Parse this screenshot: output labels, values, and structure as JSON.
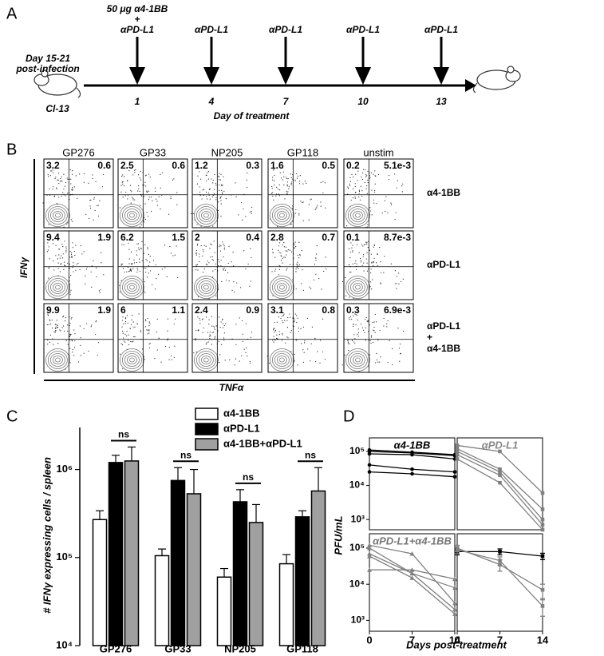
{
  "panel_labels": [
    "A",
    "B",
    "C",
    "D"
  ],
  "timeline": {
    "start_label": [
      "Day 15-21",
      "post-infection"
    ],
    "strain": "Cl-13",
    "treatments": [
      {
        "label": [
          "50 μg α4-1BB",
          "+",
          "αPD-L1"
        ],
        "day": 1
      },
      {
        "label": [
          "αPD-L1"
        ],
        "day": 4
      },
      {
        "label": [
          "αPD-L1"
        ],
        "day": 7
      },
      {
        "label": [
          "αPD-L1"
        ],
        "day": 10
      },
      {
        "label": [
          "αPD-L1"
        ],
        "day": 13
      }
    ],
    "axis_label": "Day of treatment"
  },
  "flow": {
    "columns": [
      "GP276",
      "GP33",
      "NP205",
      "GP118",
      "unstim"
    ],
    "rows": [
      {
        "label": [
          "α4-1BB"
        ],
        "quadrants": [
          [
            "3.2",
            "0.6"
          ],
          [
            "2.5",
            "0.6"
          ],
          [
            "1.2",
            "0.3"
          ],
          [
            "1.6",
            "0.5"
          ],
          [
            "0.2",
            "5.1e-3"
          ]
        ]
      },
      {
        "label": [
          "αPD-L1"
        ],
        "quadrants": [
          [
            "9.4",
            "1.9"
          ],
          [
            "6.2",
            "1.5"
          ],
          [
            "2",
            "0.4"
          ],
          [
            "2.8",
            "0.7"
          ],
          [
            "0.1",
            "8.7e-3"
          ]
        ]
      },
      {
        "label": [
          "αPD-L1",
          "+",
          "α4-1BB"
        ],
        "quadrants": [
          [
            "9.9",
            "1.9"
          ],
          [
            "6",
            "1.1"
          ],
          [
            "2.4",
            "0.9"
          ],
          [
            "3.1",
            "0.8"
          ],
          [
            "0.3",
            "6.9e-3"
          ]
        ]
      }
    ],
    "y_label": "IFNγ",
    "x_label": "TNFα"
  },
  "chart_data": [
    {
      "type": "bar",
      "ylabel": "# IFNγ expressing cells / spleen",
      "log_y": true,
      "categories": [
        "GP276",
        "GP33",
        "NP205",
        "GP118"
      ],
      "series": [
        {
          "name": "α4-1BB",
          "color": "#ffffff",
          "values": [
            270000,
            105000,
            60000,
            85000
          ],
          "errors": [
            70000,
            20000,
            15000,
            23000
          ]
        },
        {
          "name": "αPD-L1",
          "color": "#000000",
          "values": [
            1200000,
            750000,
            430000,
            290000
          ],
          "errors": [
            250000,
            300000,
            160000,
            50000
          ]
        },
        {
          "name": "α4-1BB+αPD-L1",
          "color": "#a0a0a0",
          "values": [
            1250000,
            530000,
            250000,
            570000
          ],
          "errors": [
            550000,
            470000,
            150000,
            480000
          ]
        }
      ],
      "ylim": [
        10000,
        3000000
      ],
      "yticks": [
        {
          "value": 10000,
          "label": "10⁴"
        },
        {
          "value": 100000,
          "label": "10⁵"
        },
        {
          "value": 1000000,
          "label": "10⁶"
        }
      ],
      "annotations": [
        "ns",
        "ns",
        "ns",
        "ns"
      ]
    },
    {
      "type": "line",
      "title": "α4-1BB",
      "title_color": "#000000",
      "log_y": true,
      "marker": "circle",
      "ylabel": "PFU/mL",
      "x": [
        0,
        7,
        14
      ],
      "xlim": [
        0,
        14
      ],
      "ylim": [
        500,
        250000
      ],
      "yticks": [
        {
          "value": 1000,
          "label": "10³"
        },
        {
          "value": 10000,
          "label": "10⁴"
        },
        {
          "value": 100000,
          "label": "10⁵"
        }
      ],
      "series": [
        {
          "color": "#000000",
          "values": [
            110000,
            95000,
            80000
          ]
        },
        {
          "color": "#000000",
          "values": [
            100000,
            90000,
            75000
          ]
        },
        {
          "color": "#000000",
          "values": [
            85000,
            80000,
            60000
          ]
        },
        {
          "color": "#000000",
          "values": [
            40000,
            30000,
            25000
          ]
        },
        {
          "color": "#000000",
          "values": [
            25000,
            22000,
            18000
          ]
        }
      ]
    },
    {
      "type": "line",
      "title": "αPD-L1",
      "title_color": "#888888",
      "log_y": true,
      "marker": "square",
      "x": [
        0,
        7,
        14
      ],
      "xlim": [
        0,
        14
      ],
      "ylim": [
        500,
        250000
      ],
      "series": [
        {
          "color": "#808080",
          "values": [
            150000,
            100000,
            6000
          ]
        },
        {
          "color": "#808080",
          "values": [
            120000,
            30000,
            2000
          ]
        },
        {
          "color": "#808080",
          "values": [
            100000,
            25000,
            1000
          ]
        },
        {
          "color": "#808080",
          "values": [
            80000,
            20000,
            700
          ]
        },
        {
          "color": "#808080",
          "values": [
            60000,
            12000,
            500
          ]
        }
      ]
    },
    {
      "type": "line",
      "title": "αPD-L1+α4-1BB",
      "title_color": "#777777",
      "log_y": true,
      "marker": "triangle",
      "xlabel": "Days post-treatment",
      "x": [
        0,
        7,
        14
      ],
      "xlim": [
        0,
        14
      ],
      "ylim": [
        500,
        250000
      ],
      "yticks": [
        {
          "value": 1000,
          "label": "10³"
        },
        {
          "value": 10000,
          "label": "10⁴"
        },
        {
          "value": 100000,
          "label": "10⁵"
        }
      ],
      "xticks": [
        0,
        7,
        14
      ],
      "series": [
        {
          "color": "#808080",
          "values": [
            120000,
            70000,
            3000
          ]
        },
        {
          "color": "#808080",
          "values": [
            100000,
            20000,
            8000
          ]
        },
        {
          "color": "#808080",
          "values": [
            70000,
            20000,
            2000
          ]
        },
        {
          "color": "#808080",
          "values": [
            25000,
            25000,
            14000
          ]
        },
        {
          "color": "#808080",
          "values": [
            60000,
            15000,
            1500
          ]
        }
      ]
    },
    {
      "type": "line",
      "log_y": true,
      "marker": "square",
      "x": [
        0,
        7,
        14
      ],
      "xlim": [
        0,
        14
      ],
      "ylim": [
        500,
        250000
      ],
      "xticks": [
        0,
        7,
        14
      ],
      "series": [
        {
          "color": "#000000",
          "values": [
            80000,
            80000,
            60000
          ],
          "errors": [
            15000,
            15000,
            12000
          ]
        },
        {
          "color": "#808080",
          "values": [
            100000,
            35000,
            7000
          ],
          "errors": [
            20000,
            12000,
            3000
          ]
        },
        {
          "color": "#808080",
          "values": [
            90000,
            45000,
            2500
          ],
          "errors": [
            20000,
            12000,
            1200
          ]
        }
      ]
    }
  ]
}
